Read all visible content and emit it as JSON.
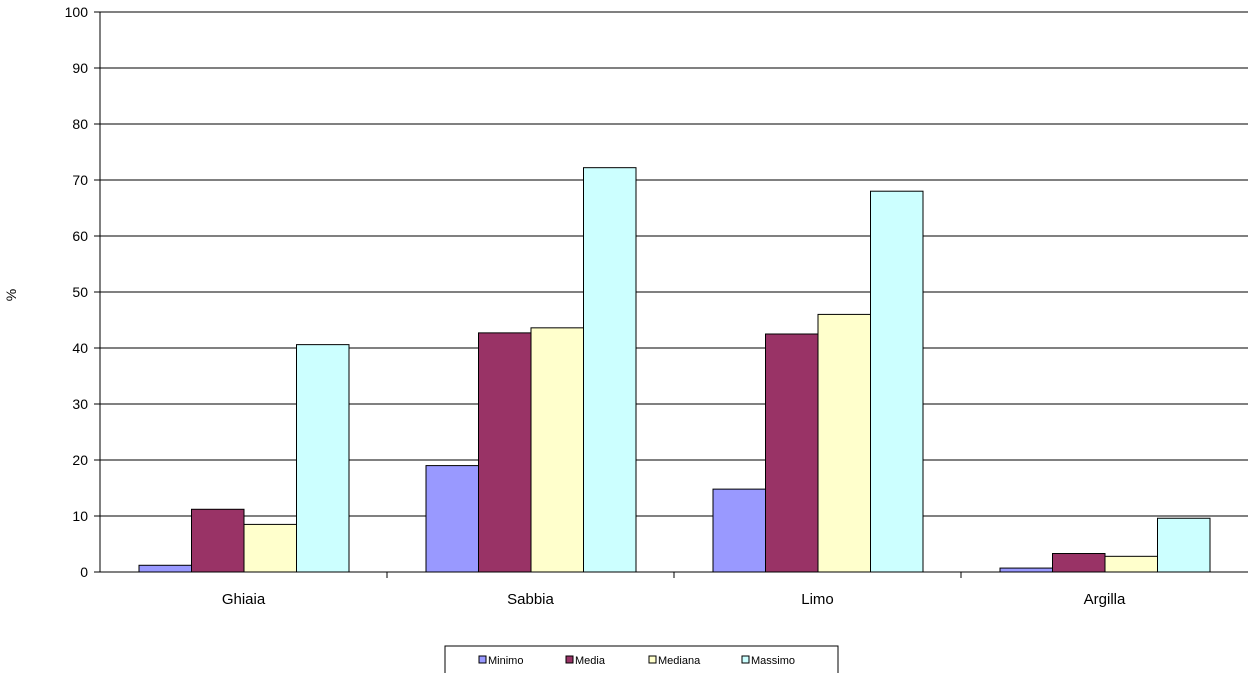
{
  "chart_data": {
    "type": "bar",
    "title": "",
    "xlabel": "",
    "ylabel": "%",
    "ylim": [
      0,
      100
    ],
    "yticks": [
      0,
      10,
      20,
      30,
      40,
      50,
      60,
      70,
      80,
      90,
      100
    ],
    "grid": true,
    "legend_position": "bottom",
    "categories": [
      "Ghiaia",
      "Sabbia",
      "Limo",
      "Argilla"
    ],
    "series": [
      {
        "name": "Minimo",
        "color": "#9999ff",
        "values": [
          1.2,
          19.0,
          14.8,
          0.7
        ]
      },
      {
        "name": "Media",
        "color": "#993366",
        "values": [
          11.2,
          42.7,
          42.5,
          3.3
        ]
      },
      {
        "name": "Mediana",
        "color": "#ffffcc",
        "values": [
          8.5,
          43.6,
          46.0,
          2.8
        ]
      },
      {
        "name": "Massimo",
        "color": "#ccffff",
        "values": [
          40.6,
          72.2,
          68.0,
          9.6
        ]
      }
    ]
  }
}
